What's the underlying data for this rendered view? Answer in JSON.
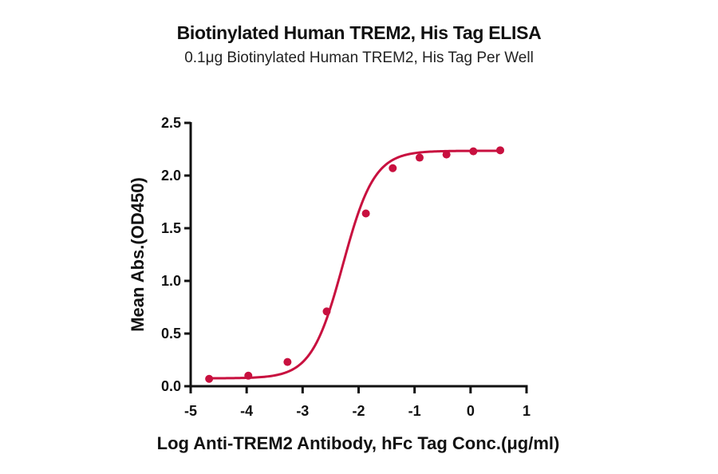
{
  "chart_data": {
    "type": "line",
    "title": "Biotinylated Human TREM2, His Tag ELISA",
    "subtitle": "0.1μg Biotinylated Human TREM2, His Tag Per Well",
    "xlabel": "Log Anti-TREM2 Antibody, hFc Tag Conc.(μg/ml)",
    "ylabel": "Mean Abs.(OD450)",
    "xlim": [
      -5,
      1
    ],
    "ylim": [
      0,
      2.5
    ],
    "x_ticks": [
      "-5",
      "-4",
      "-3",
      "-2",
      "-1",
      "0",
      "1"
    ],
    "y_ticks": [
      "0.0",
      "0.5",
      "1.0",
      "1.5",
      "2.0",
      "2.5"
    ],
    "grid": false,
    "legend": null,
    "series": [
      {
        "name": "Anti-TREM2 Antibody, hFc Tag",
        "color": "#C8103F",
        "fit": "4PL sigmoidal curve",
        "x": [
          -4.67,
          -3.97,
          -3.27,
          -2.57,
          -1.87,
          -1.39,
          -0.91,
          -0.43,
          0.05,
          0.53
        ],
        "y": [
          0.07,
          0.1,
          0.23,
          0.71,
          1.64,
          2.07,
          2.17,
          2.2,
          2.23,
          2.24
        ]
      }
    ]
  },
  "colors": {
    "series": "#C8103F",
    "axis": "#111111"
  }
}
